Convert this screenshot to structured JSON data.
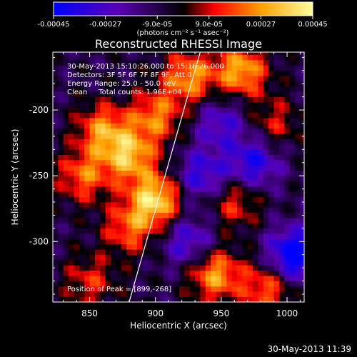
{
  "chart_data": {
    "type": "heatmap",
    "title": "Reconstructed RHESSI Image",
    "xlabel": "Heliocentric X (arcsec)",
    "ylabel": "Heliocentric Y (arcsec)",
    "xlim": [
      822,
      1013
    ],
    "ylim": [
      -346,
      -156
    ],
    "x_ticks": [
      850,
      900,
      950,
      1000
    ],
    "y_ticks": [
      -200,
      -250,
      -300
    ],
    "x_tick_labels": [
      "850",
      "900",
      "950",
      "1000"
    ],
    "y_tick_labels": [
      "-200",
      "-250",
      "-300"
    ],
    "colorbar": {
      "min": -0.00045,
      "max": 0.00045,
      "tick_labels": [
        "-0.00045",
        "-0.00027",
        "-9.0e-05",
        "9.0e-05",
        "0.00027",
        "0.00045"
      ],
      "unit_label": "(photons cm⁻² s⁻¹ asec⁻²)",
      "colors": [
        "#0000ff",
        "#5a00b4",
        "#000000",
        "#ff0000",
        "#ffa000",
        "#ffffa0"
      ]
    },
    "annotations": [
      "30-May-2013 15:10:26.000 to 15:16:26.000",
      "Detectors: 3F 5F 6F 7F 8F 9F, Att 0",
      "Energy Range: 25.0 - 50.0 keV",
      "Clean     Total counts: 1.96E+04"
    ],
    "peak_label": "Position of Peak = [899,-268]",
    "peak": {
      "x": 899,
      "y": -268
    },
    "limb_line": [
      [
        880,
        -346
      ],
      [
        934,
        -156
      ]
    ],
    "hotspots": [
      {
        "x": 900,
        "y": -268,
        "v": 0.00045
      },
      {
        "x": 880,
        "y": -235,
        "v": 0.00038
      },
      {
        "x": 860,
        "y": -215,
        "v": 0.00032
      },
      {
        "x": 845,
        "y": -250,
        "v": 0.00028
      },
      {
        "x": 900,
        "y": -205,
        "v": 0.0003
      },
      {
        "x": 880,
        "y": -290,
        "v": 0.00026
      },
      {
        "x": 925,
        "y": -175,
        "v": 0.00034
      },
      {
        "x": 965,
        "y": -170,
        "v": 0.00038
      },
      {
        "x": 960,
        "y": -270,
        "v": 0.00022
      },
      {
        "x": 945,
        "y": -325,
        "v": 0.00036
      },
      {
        "x": 985,
        "y": -335,
        "v": 0.00028
      },
      {
        "x": 850,
        "y": -330,
        "v": 0.0002
      },
      {
        "x": 990,
        "y": -210,
        "v": 0.00018
      }
    ],
    "coldspots": [
      {
        "x": 935,
        "y": -250,
        "v": -0.00027
      },
      {
        "x": 975,
        "y": -240,
        "v": -0.0003
      },
      {
        "x": 1005,
        "y": -310,
        "v": -0.00045
      },
      {
        "x": 925,
        "y": -300,
        "v": -0.00025
      },
      {
        "x": 950,
        "y": -210,
        "v": -0.00022
      }
    ]
  },
  "footer_date": "30-May-2013 11:39"
}
